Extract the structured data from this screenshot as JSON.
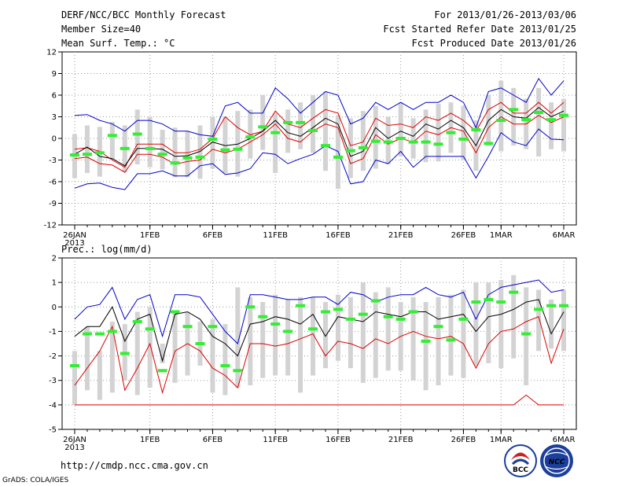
{
  "header": {
    "title": "DERF/NCC/BCC Monthly Forecast",
    "member": "Member Size=40",
    "variable": "Mean Surf. Temp.: °C",
    "period": "For 2013/01/26-2013/03/06",
    "started": "Fcst Started Refer Date 2013/01/25",
    "produced": "Fcst Produced Date 2013/01/26"
  },
  "footer": {
    "url": "http://cmdp.ncc.cma.gov.cn",
    "grads": "GrADS: COLA/IGES",
    "logo_bcc": "BCC",
    "logo_ncc": "NCC"
  },
  "colors": {
    "box": "#d3d3d3",
    "obs": "#33ee33",
    "mean": "#000000",
    "spread": "#dd0000",
    "envelope": "#0000cc",
    "dotted": "#999999"
  },
  "chart_data": [
    {
      "type": "line",
      "title": "Mean Surf. Temp.: °C",
      "xlabel": "",
      "ylabel": "°C",
      "ylim": [
        -12,
        12
      ],
      "yticks": [
        -12,
        -9,
        -6,
        -3,
        0,
        3,
        6,
        9,
        12
      ],
      "xtick_labels": [
        "26JAN",
        "1FEB",
        "6FEB",
        "11FEB",
        "16FEB",
        "21FEB",
        "26FEB",
        "1MAR",
        "6MAR"
      ],
      "xtick_days": [
        0,
        6,
        11,
        16,
        21,
        26,
        31,
        34,
        39
      ],
      "year_label": "2013",
      "days": 40,
      "series": [
        {
          "name": "upper",
          "values": [
            3.2,
            3.3,
            2.5,
            2.0,
            1.0,
            2.5,
            2.5,
            2.0,
            1.0,
            1.0,
            0.5,
            0.3,
            4.5,
            5.0,
            3.5,
            3.5,
            7.0,
            5.5,
            3.5,
            5.0,
            6.5,
            6.0,
            2.0,
            2.8,
            5.0,
            4.0,
            5.0,
            4.0,
            5.0,
            5.0,
            6.0,
            5.0,
            1.5,
            6.5,
            7.0,
            6.0,
            5.0,
            8.3,
            6.0,
            8.0
          ]
        },
        {
          "name": "high",
          "values": [
            -1.5,
            -1.3,
            -1.8,
            -3.0,
            -4.0,
            -0.8,
            -0.8,
            -0.8,
            -2.0,
            -2.0,
            -1.5,
            0.0,
            3.0,
            1.5,
            0.5,
            1.0,
            3.8,
            2.0,
            1.5,
            2.8,
            4.0,
            3.5,
            -1.0,
            -0.5,
            2.8,
            1.8,
            2.0,
            1.5,
            3.0,
            2.5,
            3.5,
            2.5,
            1.0,
            4.0,
            5.0,
            3.5,
            3.5,
            5.0,
            3.5,
            5.0
          ]
        },
        {
          "name": "mean",
          "values": [
            -2.2,
            -1.2,
            -2.5,
            -2.8,
            -3.8,
            -1.4,
            -1.4,
            -1.5,
            -2.5,
            -2.4,
            -1.8,
            -0.5,
            -1.0,
            -0.8,
            0.0,
            1.0,
            2.5,
            0.8,
            0.3,
            1.5,
            2.8,
            2.0,
            -2.5,
            -1.8,
            1.5,
            0.0,
            1.0,
            0.3,
            2.0,
            1.3,
            2.5,
            1.5,
            -1.0,
            2.5,
            4.0,
            3.0,
            2.8,
            4.3,
            3.0,
            3.8
          ]
        },
        {
          "name": "low",
          "values": [
            -2.8,
            -2.6,
            -3.5,
            -3.7,
            -4.7,
            -2.2,
            -2.2,
            -2.6,
            -3.6,
            -3.2,
            -3.0,
            -1.5,
            -2.0,
            -1.5,
            -0.5,
            0.5,
            2.0,
            0.0,
            -0.5,
            1.0,
            2.0,
            1.5,
            -3.5,
            -2.8,
            0.5,
            -0.8,
            0.0,
            -0.5,
            1.0,
            0.5,
            1.5,
            1.0,
            -2.0,
            1.5,
            3.0,
            2.0,
            2.0,
            3.2,
            2.2,
            3.0
          ]
        },
        {
          "name": "lower",
          "values": [
            -6.9,
            -6.3,
            -6.2,
            -6.8,
            -7.1,
            -4.9,
            -4.9,
            -4.5,
            -5.2,
            -5.2,
            -3.8,
            -3.5,
            -5.0,
            -4.8,
            -4.2,
            -2.0,
            -2.2,
            -3.5,
            -2.8,
            -2.2,
            -1.0,
            -1.8,
            -6.3,
            -6.0,
            -3.0,
            -3.5,
            -1.8,
            -4.0,
            -2.5,
            -2.5,
            -2.5,
            -2.5,
            -5.5,
            -2.5,
            0.8,
            -0.5,
            -1.0,
            1.3,
            -0.1,
            -0.2
          ]
        },
        {
          "name": "observed",
          "values": [
            -2.3,
            -2.2,
            -2.0,
            0.4,
            -1.4,
            0.6,
            -1.4,
            -2.2,
            -3.4,
            -2.7,
            -2.6,
            -0.1,
            -1.6,
            -1.5,
            0.2,
            1.6,
            0.8,
            2.2,
            2.2,
            1.1,
            -1.0,
            -2.6,
            -1.7,
            -1.3,
            -0.4,
            -0.5,
            0.0,
            -0.5,
            -0.5,
            -0.8,
            0.8,
            -0.1,
            1.2,
            -0.7,
            2.5,
            4.0,
            2.6,
            3.6,
            2.6,
            3.2
          ]
        },
        {
          "name": "box_top",
          "values": [
            0.6,
            1.8,
            1.6,
            2.3,
            1.8,
            4.0,
            3.0,
            1.2,
            1.5,
            1.0,
            1.8,
            3.0,
            3.0,
            3.8,
            4.0,
            6.0,
            3.5,
            4.0,
            5.0,
            6.0,
            6.5,
            3.2,
            2.8,
            3.8,
            4.5,
            3.0,
            5.0,
            2.8,
            4.0,
            4.8,
            5.0,
            4.5,
            2.5,
            6.0,
            8.0,
            7.0,
            5.5,
            7.0,
            5.0,
            5.5
          ]
        },
        {
          "name": "box_bottom",
          "values": [
            -5.5,
            -4.8,
            -5.3,
            -2.9,
            -4.7,
            -3.6,
            -4.0,
            -4.3,
            -5.4,
            -5.4,
            -5.6,
            -4.2,
            -4.8,
            -5.3,
            -2.8,
            -1.6,
            -4.8,
            -2.0,
            -1.5,
            -2.0,
            -4.5,
            -7.0,
            -5.5,
            -4.5,
            -4.2,
            -3.6,
            -2.5,
            -2.8,
            -3.3,
            -3.2,
            -2.0,
            -3.0,
            -4.5,
            -1.0,
            -1.8,
            -1.0,
            -1.5,
            -2.5,
            -1.5,
            -1.8
          ]
        }
      ]
    },
    {
      "type": "line",
      "title": "Prec.: log(mm/d)",
      "xlabel": "",
      "ylabel": "log(mm/d)",
      "ylim": [
        -5,
        2
      ],
      "yticks": [
        -5,
        -4,
        -3,
        -2,
        -1,
        0,
        1,
        2
      ],
      "xtick_labels": [
        "26JAN",
        "1FEB",
        "6FEB",
        "11FEB",
        "16FEB",
        "21FEB",
        "26FEB",
        "1MAR",
        "6MAR"
      ],
      "xtick_days": [
        0,
        6,
        11,
        16,
        21,
        26,
        31,
        34,
        39
      ],
      "year_label": "2013",
      "days": 40,
      "series": [
        {
          "name": "upper",
          "values": [
            -0.5,
            0.0,
            0.1,
            0.8,
            -0.5,
            0.3,
            0.5,
            -1.2,
            0.5,
            0.5,
            0.4,
            -0.3,
            -1.0,
            -1.5,
            0.5,
            0.5,
            0.4,
            0.3,
            0.3,
            0.4,
            0.4,
            0.1,
            0.6,
            0.5,
            0.2,
            0.4,
            0.5,
            0.5,
            0.8,
            0.5,
            0.4,
            0.6,
            -0.5,
            0.5,
            0.8,
            0.9,
            1.0,
            1.1,
            0.6,
            0.7
          ]
        },
        {
          "name": "mean",
          "values": [
            -1.2,
            -0.8,
            -0.8,
            0.0,
            -1.4,
            -0.5,
            -0.3,
            -2.2,
            -0.3,
            -0.2,
            -0.5,
            -1.2,
            -1.5,
            -2.0,
            -0.7,
            -0.6,
            -0.4,
            -0.5,
            -0.7,
            -0.3,
            -1.2,
            -0.4,
            -0.5,
            -0.6,
            -0.2,
            -0.3,
            -0.4,
            -0.2,
            -0.2,
            -0.5,
            -0.4,
            -0.3,
            -1.0,
            -0.4,
            -0.3,
            -0.1,
            0.2,
            0.3,
            -1.1,
            -0.2
          ]
        },
        {
          "name": "low",
          "values": [
            -3.2,
            -2.5,
            -1.8,
            -0.8,
            -3.4,
            -2.5,
            -1.5,
            -3.5,
            -1.8,
            -1.5,
            -1.8,
            -2.5,
            -2.8,
            -3.3,
            -1.5,
            -1.5,
            -1.6,
            -1.5,
            -1.3,
            -1.1,
            -2.0,
            -1.4,
            -1.5,
            -1.7,
            -1.3,
            -1.5,
            -1.2,
            -1.0,
            -1.2,
            -1.3,
            -1.2,
            -1.5,
            -2.5,
            -1.5,
            -1.0,
            -0.9,
            -0.6,
            -0.4,
            -2.3,
            -0.9
          ]
        },
        {
          "name": "lower",
          "values": [
            -4.0,
            -4.0,
            -4.0,
            -4.0,
            -4.0,
            -4.0,
            -4.0,
            -4.0,
            -4.0,
            -4.0,
            -4.0,
            -4.0,
            -4.0,
            -4.0,
            -4.0,
            -4.0,
            -4.0,
            -4.0,
            -4.0,
            -4.0,
            -4.0,
            -4.0,
            -4.0,
            -4.0,
            -4.0,
            -4.0,
            -4.0,
            -4.0,
            -4.0,
            -4.0,
            -4.0,
            -4.0,
            -4.0,
            -4.0,
            -4.0,
            -4.0,
            -3.6,
            -4.0,
            -4.0,
            -4.0
          ]
        },
        {
          "name": "observed",
          "values": [
            -2.4,
            -1.1,
            -1.1,
            -1.0,
            -1.9,
            -0.6,
            -0.9,
            -2.6,
            -0.2,
            -0.8,
            -1.5,
            -0.8,
            -2.4,
            -2.6,
            0.0,
            -0.4,
            -0.7,
            -1.0,
            0.05,
            -0.9,
            -0.2,
            -0.1,
            -0.5,
            -0.3,
            0.25,
            -0.4,
            -0.5,
            -0.2,
            -1.4,
            -0.8,
            -1.35,
            -0.5,
            0.2,
            0.3,
            0.2,
            0.6,
            -1.1,
            -0.1,
            0.05,
            0.05
          ]
        },
        {
          "name": "box_top",
          "values": [
            -1.8,
            -0.8,
            -1.8,
            -0.6,
            -0.7,
            -0.2,
            0.0,
            -1.5,
            -0.2,
            -0.2,
            -0.6,
            -0.5,
            -0.7,
            0.8,
            0.4,
            0.2,
            0.5,
            0.3,
            0.4,
            0.4,
            0.2,
            0.5,
            0.4,
            1.0,
            0.6,
            0.8,
            0.2,
            0.4,
            0.2,
            0.4,
            0.5,
            0.7,
            1.0,
            1.0,
            1.1,
            1.3,
            0.8,
            0.7,
            0.3,
            0.7
          ]
        },
        {
          "name": "box_bottom",
          "values": [
            -4.0,
            -3.4,
            -3.8,
            -3.5,
            -3.0,
            -3.6,
            -3.3,
            -2.3,
            -3.1,
            -2.8,
            -2.4,
            -3.5,
            -3.6,
            -3.3,
            -3.2,
            -2.9,
            -2.8,
            -2.8,
            -3.5,
            -2.8,
            -2.5,
            -2.2,
            -2.5,
            -3.1,
            -2.9,
            -2.6,
            -2.6,
            -3.0,
            -3.4,
            -3.2,
            -2.8,
            -2.9,
            -2.4,
            -2.3,
            -2.5,
            -2.1,
            -3.2,
            -1.8,
            -1.7,
            -1.8
          ]
        }
      ]
    }
  ]
}
